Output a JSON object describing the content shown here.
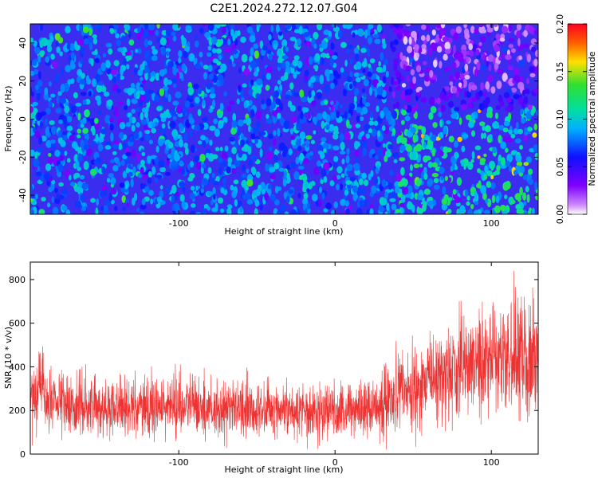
{
  "title": "C2E1.2024.272.12.07.G04",
  "chart_data": [
    {
      "type": "heatmap",
      "title": "C2E1.2024.272.12.07.G04",
      "xlabel": "Height of straight line (km)",
      "ylabel": "Frequency (Hz)",
      "xlim": [
        -195,
        130
      ],
      "ylim": [
        -50,
        50
      ],
      "x_ticks": [
        -100,
        0,
        100
      ],
      "y_ticks": [
        -40,
        -20,
        0,
        20,
        40
      ],
      "colorbar": {
        "label": "Normalized spectral amplitude",
        "range": [
          0.0,
          0.2
        ],
        "ticks": [
          "0.00",
          "0.05",
          "0.10",
          "0.15",
          "0.20"
        ]
      }
    },
    {
      "type": "line",
      "xlabel": "Height of straight line (km)",
      "ylabel": "SNR (10 * v/v)",
      "xlim": [
        -195,
        130
      ],
      "ylim": [
        0,
        880
      ],
      "x_ticks": [
        -100,
        0,
        100
      ],
      "y_ticks": [
        0,
        200,
        400,
        600,
        800
      ],
      "color": "#ee3333",
      "profile": {
        "x": [
          -195,
          -188,
          -185,
          -180,
          -150,
          -100,
          -50,
          -10,
          10,
          25,
          50,
          75,
          100,
          130
        ],
        "mean": [
          280,
          320,
          260,
          225,
          215,
          215,
          205,
          200,
          200,
          220,
          300,
          380,
          430,
          450
        ]
      }
    }
  ]
}
